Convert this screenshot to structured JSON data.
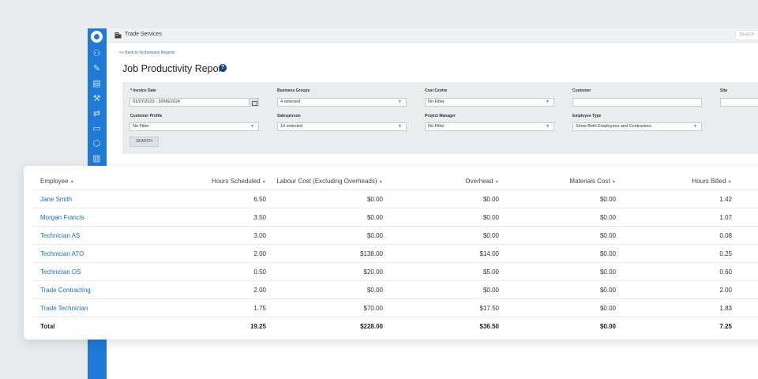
{
  "app": {
    "company": "Trade Services",
    "search_placeholder": "Search"
  },
  "page": {
    "back_link": "<< Back to Technicians Reports",
    "title": "Job Productivity Report",
    "help_icon": "?"
  },
  "filters": {
    "invoice_date_label": "* Invoice Date",
    "invoice_date_value": "01/07/2023 - 30/06/2024",
    "business_groups_label": "Business Groups",
    "business_groups_value": "4 selected",
    "cost_centre_label": "Cost Centre",
    "cost_centre_value": "No Filter",
    "customer_label": "Customer",
    "customer_value": "",
    "site_label": "Site",
    "site_value": "",
    "customer_profile_label": "Customer Profile",
    "customer_profile_value": "No Filter",
    "salesperson_label": "Salesperson",
    "salesperson_value": "10 selected",
    "project_manager_label": "Project Manager",
    "project_manager_value": "No Filter",
    "employee_type_label": "Employee Type",
    "employee_type_value": "Show Both Employees and Contractors",
    "search_button": "SEARCH"
  },
  "table": {
    "sort_glyph": "▼",
    "headers": {
      "employee": "Employee",
      "hours_scheduled": "Hours Scheduled",
      "labour_cost": "Labour Cost (Excluding Overheads)",
      "overhead": "Overhead",
      "materials_cost": "Materials Cost",
      "hours_billed": "Hours Billed"
    },
    "rows": [
      {
        "employee": "Jane Smith",
        "hours_scheduled": "6.50",
        "labour_cost": "$0.00",
        "overhead": "$0.00",
        "materials_cost": "$0.00",
        "hours_billed": "1.42"
      },
      {
        "employee": "Morgan Francis",
        "hours_scheduled": "3.50",
        "labour_cost": "$0.00",
        "overhead": "$0.00",
        "materials_cost": "$0.00",
        "hours_billed": "1.07"
      },
      {
        "employee": "Technician AS",
        "hours_scheduled": "3.00",
        "labour_cost": "$0.00",
        "overhead": "$0.00",
        "materials_cost": "$0.00",
        "hours_billed": "0.08"
      },
      {
        "employee": "Technician ATO",
        "hours_scheduled": "2.00",
        "labour_cost": "$138.00",
        "overhead": "$14.00",
        "materials_cost": "$0.00",
        "hours_billed": "0.25"
      },
      {
        "employee": "Technician OS",
        "hours_scheduled": "0.50",
        "labour_cost": "$20.00",
        "overhead": "$5.00",
        "materials_cost": "$0.00",
        "hours_billed": "0.60"
      },
      {
        "employee": "Trade Contracting",
        "hours_scheduled": "2.00",
        "labour_cost": "$0.00",
        "overhead": "$0.00",
        "materials_cost": "$0.00",
        "hours_billed": "2.00"
      },
      {
        "employee": "Trade Technician",
        "hours_scheduled": "1.75",
        "labour_cost": "$70.00",
        "overhead": "$17.50",
        "materials_cost": "$0.00",
        "hours_billed": "1.83"
      }
    ],
    "total": {
      "employee": "Total",
      "hours_scheduled": "19.25",
      "labour_cost": "$228.00",
      "overhead": "$36.50",
      "materials_cost": "$0.00",
      "hours_billed": "7.25"
    }
  },
  "colors": {
    "sidebar": "#1e7ad6",
    "link": "#1e6ec8",
    "help_icon": "#1c3f8f"
  },
  "icons": {
    "sidebar": [
      "users-icon",
      "user-edit-icon",
      "document-icon",
      "tools-icon",
      "transfer-icon",
      "calendar-icon",
      "box-icon",
      "receipt-icon"
    ],
    "topbar": "building-icon"
  }
}
